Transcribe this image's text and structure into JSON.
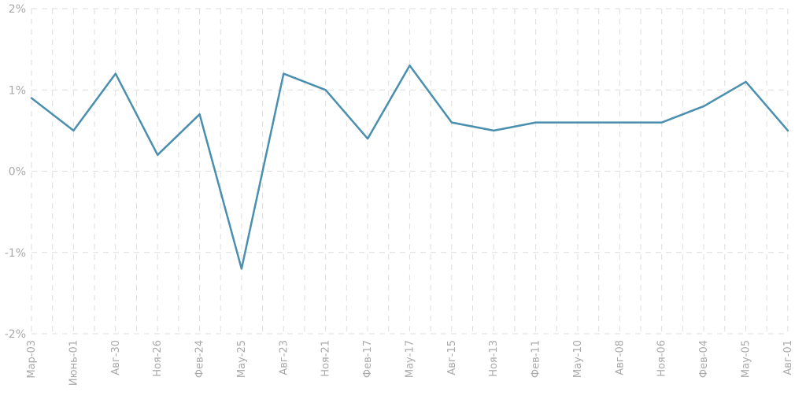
{
  "chart_data": {
    "type": "line",
    "title": "",
    "xlabel": "",
    "ylabel": "",
    "categories": [
      "Мар-03",
      "",
      "Июнь-01",
      "",
      "Авг-30",
      "",
      "Ноя-26",
      "",
      "Фев-24",
      "",
      "Мау-25",
      "",
      "Авг-23",
      "",
      "Ноя-21",
      "",
      "Фев-17",
      "",
      "Мау-17",
      "",
      "Авг-15",
      "",
      "Ноя-13",
      "",
      "Фев-11",
      "",
      "Мау-10",
      "",
      "Авг-08",
      "",
      "Ноя-06",
      "",
      "Фев-04",
      "",
      "Мау-05",
      "",
      "Авг-01",
      ""
    ],
    "x_tick_labels": [
      "Мар-03",
      "Июнь-01",
      "Авг-30",
      "Ноя-26",
      "Фев-24",
      "Мау-25",
      "Авг-23",
      "Ноя-21",
      "Фев-17",
      "Мау-17",
      "Авг-15",
      "Ноя-13",
      "Фев-11",
      "Мау-10",
      "Авг-08",
      "Ноя-06",
      "Фев-04",
      "Мау-05",
      "Авг-01"
    ],
    "y_tick_labels": [
      "2%",
      "1%",
      "0%",
      "-1%",
      "-2%"
    ],
    "ylim": [
      -2,
      2
    ],
    "y_unit": "%",
    "grid": true,
    "series": [
      {
        "color": "#4a8fae",
        "points": [
          {
            "x": 0,
            "y": 0.9
          },
          {
            "x": 1,
            "y": 0.5
          },
          {
            "x": 2,
            "y": 1.2
          },
          {
            "x": 3,
            "y": 0.2
          },
          {
            "x": 4,
            "y": 0.7
          },
          {
            "x": 5,
            "y": -1.2
          },
          {
            "x": 6,
            "y": 1.2
          },
          {
            "x": 7,
            "y": 1.0
          },
          {
            "x": 8,
            "y": 0.4
          },
          {
            "x": 9,
            "y": 1.3
          },
          {
            "x": 10,
            "y": 0.6
          },
          {
            "x": 11,
            "y": 0.5
          },
          {
            "x": 12,
            "y": 0.6
          },
          {
            "x": 13,
            "y": 0.6
          },
          {
            "x": 14,
            "y": 0.6
          },
          {
            "x": 15,
            "y": 0.6
          },
          {
            "x": 16,
            "y": 0.8
          },
          {
            "x": 17,
            "y": 1.1
          },
          {
            "x": 18,
            "y": 0.5
          }
        ]
      }
    ]
  }
}
